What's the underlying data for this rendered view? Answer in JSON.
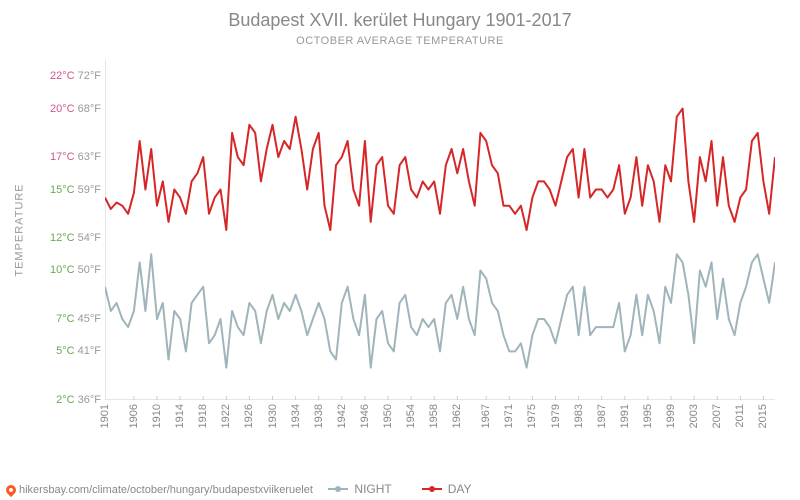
{
  "title": "Budapest XVII. kerület Hungary 1901-2017",
  "subtitle": "OCTOBER AVERAGE TEMPERATURE",
  "ylabel": "TEMPERATURE",
  "source_url": "hikersbay.com/climate/october/hungary/budapestxviikeruelet",
  "chart": {
    "type": "line",
    "background_color": "#ffffff",
    "grid": false,
    "xlim": [
      1901,
      2017
    ],
    "ylim": [
      2,
      23
    ],
    "y_ticks": [
      {
        "c": "2°C",
        "f": "36°F",
        "pos": 2,
        "color": "#6aa84f"
      },
      {
        "c": "5°C",
        "f": "41°F",
        "pos": 5,
        "color": "#6aa84f"
      },
      {
        "c": "7°C",
        "f": "45°F",
        "pos": 7,
        "color": "#6aa84f"
      },
      {
        "c": "10°C",
        "f": "50°F",
        "pos": 10,
        "color": "#6aa84f"
      },
      {
        "c": "12°C",
        "f": "54°F",
        "pos": 12,
        "color": "#6aa84f"
      },
      {
        "c": "15°C",
        "f": "59°F",
        "pos": 15,
        "color": "#6aa84f"
      },
      {
        "c": "17°C",
        "f": "63°F",
        "pos": 17,
        "color": "#d0548f"
      },
      {
        "c": "20°C",
        "f": "68°F",
        "pos": 20,
        "color": "#d0548f"
      },
      {
        "c": "22°C",
        "f": "72°F",
        "pos": 22,
        "color": "#d0548f"
      }
    ],
    "x_ticks": [
      1901,
      1906,
      1910,
      1914,
      1918,
      1922,
      1926,
      1930,
      1934,
      1938,
      1942,
      1946,
      1950,
      1954,
      1958,
      1962,
      1967,
      1971,
      1975,
      1979,
      1983,
      1987,
      1991,
      1995,
      1999,
      2003,
      2007,
      2011,
      2015
    ],
    "series": [
      {
        "name": "DAY",
        "color": "#d62728",
        "marker": "circle",
        "line_width": 2,
        "x": [
          1901,
          1902,
          1903,
          1904,
          1905,
          1906,
          1907,
          1908,
          1909,
          1910,
          1911,
          1912,
          1913,
          1914,
          1915,
          1916,
          1917,
          1918,
          1919,
          1920,
          1921,
          1922,
          1923,
          1924,
          1925,
          1926,
          1927,
          1928,
          1929,
          1930,
          1931,
          1932,
          1933,
          1934,
          1935,
          1936,
          1937,
          1938,
          1939,
          1940,
          1941,
          1942,
          1943,
          1944,
          1945,
          1946,
          1947,
          1948,
          1949,
          1950,
          1951,
          1952,
          1953,
          1954,
          1955,
          1956,
          1957,
          1958,
          1959,
          1960,
          1961,
          1962,
          1963,
          1964,
          1965,
          1966,
          1967,
          1968,
          1969,
          1970,
          1971,
          1972,
          1973,
          1974,
          1975,
          1976,
          1977,
          1978,
          1979,
          1980,
          1981,
          1982,
          1983,
          1984,
          1985,
          1986,
          1987,
          1988,
          1989,
          1990,
          1991,
          1992,
          1993,
          1994,
          1995,
          1996,
          1997,
          1998,
          1999,
          2000,
          2001,
          2002,
          2003,
          2004,
          2005,
          2006,
          2007,
          2008,
          2009,
          2010,
          2011,
          2012,
          2013,
          2014,
          2015,
          2016,
          2017
        ],
        "y": [
          14.5,
          13.8,
          14.2,
          14.0,
          13.5,
          14.8,
          18.0,
          15.0,
          17.5,
          14.0,
          15.5,
          13.0,
          15.0,
          14.5,
          13.5,
          15.5,
          16.0,
          17.0,
          13.5,
          14.5,
          15.0,
          12.5,
          18.5,
          17.0,
          16.5,
          19.0,
          18.5,
          15.5,
          17.5,
          19.0,
          17.0,
          18.0,
          17.5,
          19.5,
          17.5,
          15.0,
          17.5,
          18.5,
          14.0,
          12.5,
          16.5,
          17.0,
          18.0,
          15.0,
          14.0,
          18.0,
          13.0,
          16.5,
          17.0,
          14.0,
          13.5,
          16.5,
          17.0,
          15.0,
          14.5,
          15.5,
          15.0,
          15.5,
          13.5,
          16.5,
          17.5,
          16.0,
          17.5,
          15.5,
          14.0,
          18.5,
          18.0,
          16.5,
          16.0,
          14.0,
          14.0,
          13.5,
          14.0,
          12.5,
          14.5,
          15.5,
          15.5,
          15.0,
          14.0,
          15.5,
          17.0,
          17.5,
          14.5,
          17.5,
          14.5,
          15.0,
          15.0,
          14.5,
          15.0,
          16.5,
          13.5,
          14.5,
          17.0,
          14.0,
          16.5,
          15.5,
          13.0,
          16.5,
          15.5,
          19.5,
          20.0,
          15.5,
          13.0,
          17.0,
          15.5,
          18.0,
          14.0,
          17.0,
          14.0,
          13.0,
          14.5,
          15.0,
          18.0,
          18.5,
          15.5,
          13.5,
          17.0
        ]
      },
      {
        "name": "NIGHT",
        "color": "#a0b4bb",
        "marker": "circle",
        "line_width": 2,
        "x": [
          1901,
          1902,
          1903,
          1904,
          1905,
          1906,
          1907,
          1908,
          1909,
          1910,
          1911,
          1912,
          1913,
          1914,
          1915,
          1916,
          1917,
          1918,
          1919,
          1920,
          1921,
          1922,
          1923,
          1924,
          1925,
          1926,
          1927,
          1928,
          1929,
          1930,
          1931,
          1932,
          1933,
          1934,
          1935,
          1936,
          1937,
          1938,
          1939,
          1940,
          1941,
          1942,
          1943,
          1944,
          1945,
          1946,
          1947,
          1948,
          1949,
          1950,
          1951,
          1952,
          1953,
          1954,
          1955,
          1956,
          1957,
          1958,
          1959,
          1960,
          1961,
          1962,
          1963,
          1964,
          1965,
          1966,
          1967,
          1968,
          1969,
          1970,
          1971,
          1972,
          1973,
          1974,
          1975,
          1976,
          1977,
          1978,
          1979,
          1980,
          1981,
          1982,
          1983,
          1984,
          1985,
          1986,
          1987,
          1988,
          1989,
          1990,
          1991,
          1992,
          1993,
          1994,
          1995,
          1996,
          1997,
          1998,
          1999,
          2000,
          2001,
          2002,
          2003,
          2004,
          2005,
          2006,
          2007,
          2008,
          2009,
          2010,
          2011,
          2012,
          2013,
          2014,
          2015,
          2016,
          2017
        ],
        "y": [
          9.0,
          7.5,
          8.0,
          7.0,
          6.5,
          7.5,
          10.5,
          7.5,
          11.0,
          7.0,
          8.0,
          4.5,
          7.5,
          7.0,
          5.0,
          8.0,
          8.5,
          9.0,
          5.5,
          6.0,
          7.0,
          4.0,
          7.5,
          6.5,
          6.0,
          8.0,
          7.5,
          5.5,
          7.5,
          8.5,
          7.0,
          8.0,
          7.5,
          8.5,
          7.5,
          6.0,
          7.0,
          8.0,
          7.0,
          5.0,
          4.5,
          8.0,
          9.0,
          7.0,
          6.0,
          8.5,
          4.0,
          7.0,
          7.5,
          5.5,
          5.0,
          8.0,
          8.5,
          6.5,
          6.0,
          7.0,
          6.5,
          7.0,
          5.0,
          8.0,
          8.5,
          7.0,
          9.0,
          7.0,
          6.0,
          10.0,
          9.5,
          8.0,
          7.5,
          6.0,
          5.0,
          5.0,
          5.5,
          4.0,
          6.0,
          7.0,
          7.0,
          6.5,
          5.5,
          7.0,
          8.5,
          9.0,
          6.0,
          9.0,
          6.0,
          6.5,
          6.5,
          6.5,
          6.5,
          8.0,
          5.0,
          6.0,
          8.5,
          6.0,
          8.5,
          7.5,
          5.5,
          9.0,
          8.0,
          11.0,
          10.5,
          8.5,
          5.5,
          10.0,
          9.0,
          10.5,
          7.0,
          9.5,
          7.0,
          6.0,
          8.0,
          9.0,
          10.5,
          11.0,
          9.5,
          8.0,
          10.5
        ]
      }
    ]
  },
  "legend": {
    "items": [
      {
        "label": "NIGHT",
        "swatch": "night"
      },
      {
        "label": "DAY",
        "swatch": "day"
      }
    ]
  }
}
